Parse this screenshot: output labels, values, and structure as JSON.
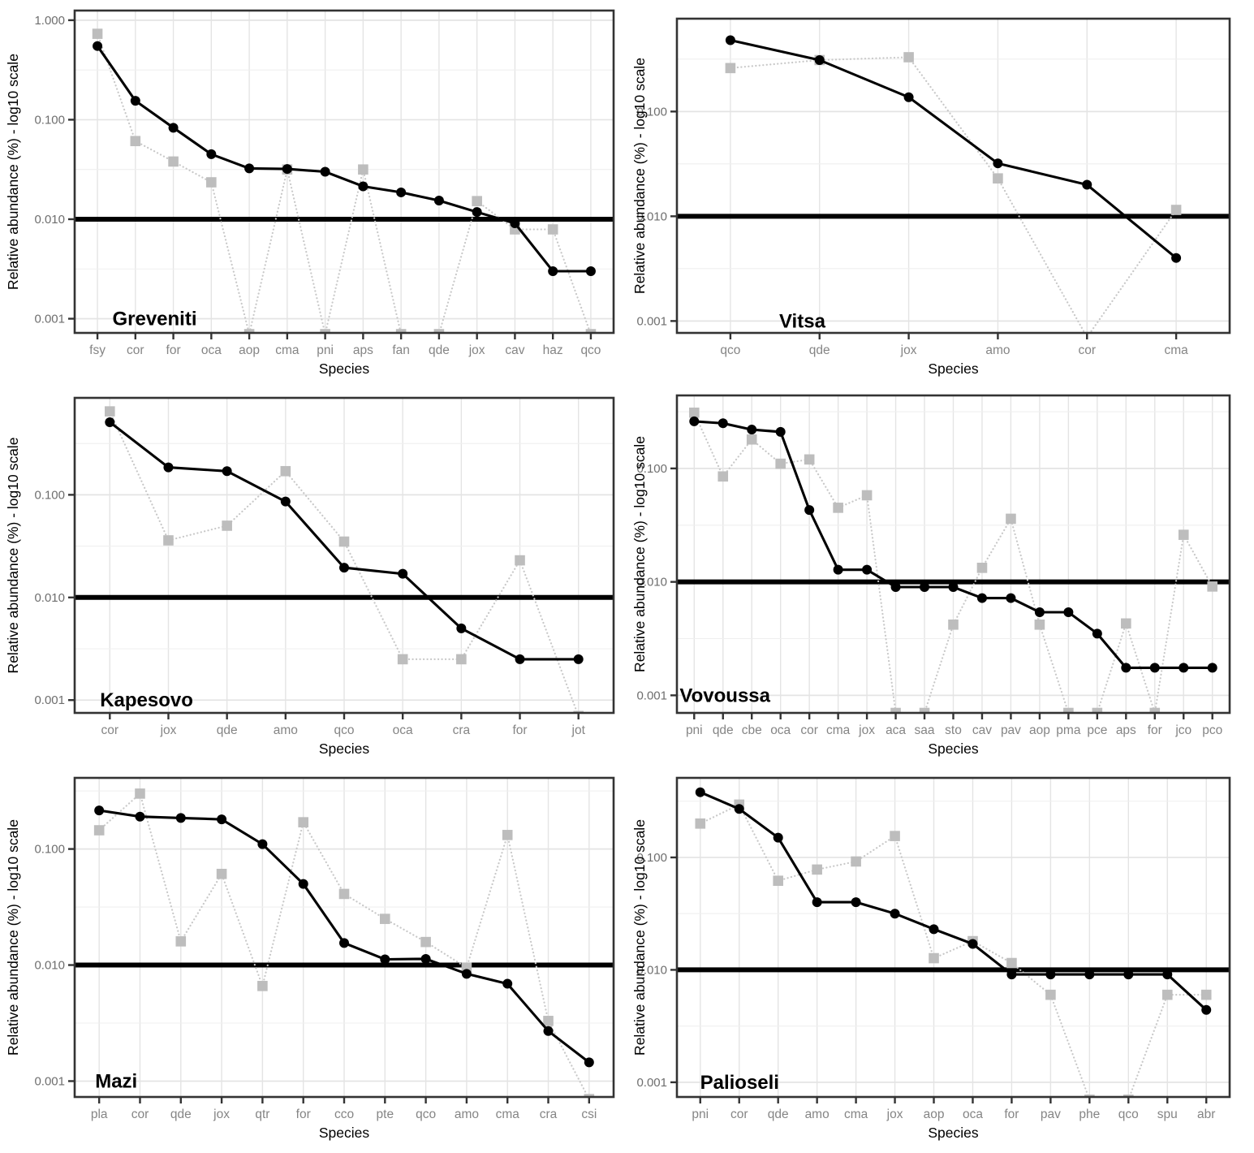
{
  "figure": {
    "ylabel": "Relative abundance (%) - log10 scale",
    "xlabel": "Species",
    "threshold_value": 0.01
  },
  "style": {
    "solid_series_color": "#000000",
    "dotted_series_color": "#bdbdbd",
    "dotted_line_color": "#c8c8c8",
    "grid_major_color": "#e4e4e4",
    "grid_minor_color": "#efefef",
    "panel_border_color": "#333333",
    "threshold_color": "#000000",
    "y_tick_text_color": "#6e6e6e",
    "x_tick_text_color": "#858585",
    "axis_title_color": "#000000",
    "panel_name_color": "#000000"
  },
  "chart_data": [
    {
      "type": "line",
      "title": "Greveniti",
      "xlabel": "Species",
      "ylabel": "Relative abundance (%) - log10 scale",
      "categories": [
        "fsy",
        "cor",
        "for",
        "oca",
        "aop",
        "cma",
        "pni",
        "aps",
        "fan",
        "qde",
        "jox",
        "cav",
        "haz",
        "qco"
      ],
      "series": [
        {
          "name": "solid-circles",
          "marker": "circle",
          "line": "solid",
          "values": [
            0.55,
            0.155,
            0.083,
            0.045,
            0.0324,
            0.032,
            0.03,
            0.0214,
            0.0186,
            0.0154,
            0.0118,
            0.0091,
            0.003,
            0.003
          ]
        },
        {
          "name": "dotted-squares",
          "marker": "square",
          "line": "dotted",
          "values": [
            0.73,
            0.061,
            0.038,
            0.0235,
            0.0007,
            0.0316,
            0.0007,
            0.0316,
            0.0007,
            0.0007,
            0.0152,
            0.0079,
            0.0079,
            0.0007
          ]
        }
      ],
      "yticks": [
        1,
        0.1,
        0.01,
        0.001
      ],
      "ytick_labels": [
        "1.000",
        "0.100",
        "0.010",
        "0.001"
      ],
      "ylim": [
        0.00072,
        1.25
      ],
      "threshold": 0.01,
      "grid": true,
      "legend": "none",
      "name_x_frac": 0.07
    },
    {
      "type": "line",
      "title": "Vitsa",
      "xlabel": "Species",
      "ylabel": "Relative abundance (%) - log10 scale",
      "categories": [
        "qco",
        "qde",
        "jox",
        "amo",
        "cor",
        "cma"
      ],
      "series": [
        {
          "name": "solid-circles",
          "marker": "circle",
          "line": "solid",
          "values": [
            0.48,
            0.31,
            0.137,
            0.032,
            0.02,
            0.004
          ]
        },
        {
          "name": "dotted-squares",
          "marker": "square",
          "line": "dotted",
          "values": [
            0.26,
            0.31,
            0.33,
            0.023,
            0.0007,
            0.0115
          ]
        }
      ],
      "yticks": [
        0.1,
        0.01,
        0.001
      ],
      "ytick_labels": [
        "0.100",
        "0.010",
        "0.001"
      ],
      "ylim": [
        0.00077,
        0.77
      ],
      "threshold": 0.01,
      "grid": true,
      "legend": "none",
      "name_x_frac": 0.185
    },
    {
      "type": "line",
      "title": "Kapesovo",
      "xlabel": "Species",
      "ylabel": "Relative abundance (%) - log10 scale",
      "categories": [
        "cor",
        "jox",
        "qde",
        "amo",
        "qco",
        "oca",
        "cra",
        "for",
        "jot"
      ],
      "series": [
        {
          "name": "solid-circles",
          "marker": "circle",
          "line": "solid",
          "values": [
            0.51,
            0.185,
            0.17,
            0.086,
            0.0195,
            0.017,
            0.005,
            0.0025,
            0.0025
          ]
        },
        {
          "name": "dotted-squares",
          "marker": "square",
          "line": "dotted",
          "values": [
            0.65,
            0.036,
            0.05,
            0.17,
            0.035,
            0.0025,
            0.0025,
            0.023,
            0.0007
          ]
        }
      ],
      "yticks": [
        0.1,
        0.01,
        0.001
      ],
      "ytick_labels": [
        "0.100",
        "0.010",
        "0.001"
      ],
      "ylim": [
        0.00075,
        0.88
      ],
      "threshold": 0.01,
      "grid": true,
      "legend": "none",
      "name_x_frac": 0.047
    },
    {
      "type": "line",
      "title": "Vovoussa",
      "xlabel": "Species",
      "ylabel": "Relative abundance (%) - log10 scale",
      "categories": [
        "pni",
        "qde",
        "cbe",
        "oca",
        "cor",
        "cma",
        "jox",
        "aca",
        "saa",
        "sto",
        "cav",
        "pav",
        "aop",
        "pma",
        "pce",
        "aps",
        "for",
        "jco",
        "pco"
      ],
      "series": [
        {
          "name": "solid-circles",
          "marker": "circle",
          "line": "solid",
          "values": [
            0.26,
            0.25,
            0.22,
            0.21,
            0.043,
            0.0128,
            0.0128,
            0.009,
            0.009,
            0.009,
            0.0072,
            0.0072,
            0.0054,
            0.0054,
            0.0035,
            0.00175,
            0.00175,
            0.00175,
            0.00175
          ]
        },
        {
          "name": "dotted-squares",
          "marker": "square",
          "line": "dotted",
          "values": [
            0.31,
            0.085,
            0.18,
            0.11,
            0.12,
            0.045,
            0.058,
            0.0007,
            0.0007,
            0.0042,
            0.0133,
            0.036,
            0.0042,
            0.0007,
            0.0007,
            0.0043,
            0.0007,
            0.026,
            0.0091
          ]
        }
      ],
      "yticks": [
        0.1,
        0.01,
        0.001
      ],
      "ytick_labels": [
        "0.100",
        "0.010",
        "0.001"
      ],
      "ylim": [
        0.0007,
        0.44
      ],
      "threshold": 0.01,
      "grid": true,
      "legend": "none",
      "name_x_frac": 0.005
    },
    {
      "type": "line",
      "title": "Mazi",
      "xlabel": "Species",
      "ylabel": "Relative abundance (%) - log10 scale",
      "categories": [
        "pla",
        "cor",
        "qde",
        "jox",
        "qtr",
        "for",
        "cco",
        "pte",
        "qco",
        "amo",
        "cma",
        "cra",
        "csi"
      ],
      "series": [
        {
          "name": "solid-circles",
          "marker": "circle",
          "line": "solid",
          "values": [
            0.215,
            0.19,
            0.185,
            0.18,
            0.11,
            0.05,
            0.0155,
            0.0112,
            0.0113,
            0.0084,
            0.0069,
            0.0027,
            0.00145
          ]
        },
        {
          "name": "dotted-squares",
          "marker": "square",
          "line": "dotted",
          "values": [
            0.145,
            0.3,
            0.016,
            0.061,
            0.0066,
            0.17,
            0.041,
            0.025,
            0.0158,
            0.0095,
            0.132,
            0.0033,
            0.0007
          ]
        }
      ],
      "yticks": [
        0.1,
        0.01,
        0.001
      ],
      "ytick_labels": [
        "0.100",
        "0.010",
        "0.001"
      ],
      "ylim": [
        0.00073,
        0.41
      ],
      "threshold": 0.01,
      "grid": true,
      "legend": "none",
      "name_x_frac": 0.038
    },
    {
      "type": "line",
      "title": "Palioseli",
      "xlabel": "Species",
      "ylabel": "Relative abundance (%) - log10 scale",
      "categories": [
        "pni",
        "cor",
        "qde",
        "amo",
        "cma",
        "jox",
        "aop",
        "oca",
        "for",
        "pav",
        "phe",
        "qco",
        "spu",
        "abr"
      ],
      "series": [
        {
          "name": "solid-circles",
          "marker": "circle",
          "line": "solid",
          "values": [
            0.38,
            0.27,
            0.15,
            0.04,
            0.04,
            0.0316,
            0.023,
            0.017,
            0.0091,
            0.0091,
            0.0091,
            0.0091,
            0.0091,
            0.0044
          ]
        },
        {
          "name": "dotted-squares",
          "marker": "square",
          "line": "dotted",
          "values": [
            0.2,
            0.295,
            0.062,
            0.078,
            0.092,
            0.155,
            0.0127,
            0.018,
            0.0115,
            0.006,
            0.0007,
            0.0007,
            0.006,
            0.006
          ]
        }
      ],
      "yticks": [
        0.1,
        0.01,
        0.001
      ],
      "ytick_labels": [
        "0.100",
        "0.010",
        "0.001"
      ],
      "ylim": [
        0.00074,
        0.51
      ],
      "threshold": 0.01,
      "grid": true,
      "legend": "none",
      "name_x_frac": 0.042
    }
  ]
}
